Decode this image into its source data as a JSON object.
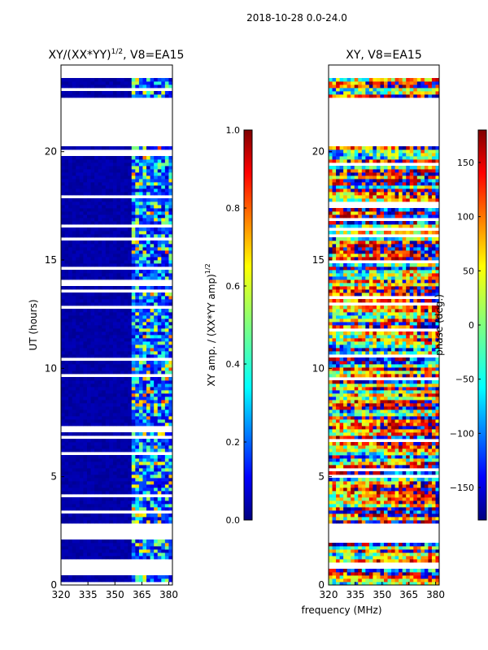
{
  "figure": {
    "suptitle": "2018-10-28 0.0-24.0",
    "xlabel": "frequency (MHz)"
  },
  "colors": {
    "jet": [
      "#00007f",
      "#0000ff",
      "#007fff",
      "#00ffff",
      "#7fff7f",
      "#ffff00",
      "#ff7f00",
      "#ff0000",
      "#7f0000"
    ],
    "axes": "#000000",
    "background": "#ffffff"
  },
  "chart_data": [
    {
      "type": "heatmap",
      "title_base": "XY/(XX*YY)",
      "title_sup": "1/2",
      "title_suffix": ", V8=EA15",
      "xlabel": "",
      "ylabel": "UT (hours)",
      "xlim": [
        320,
        382
      ],
      "ylim": [
        0,
        24
      ],
      "xticks": [
        "320",
        "335",
        "350",
        "365",
        "380"
      ],
      "xtick_values": [
        320,
        335,
        350,
        365,
        380
      ],
      "yticks": [
        "0",
        "5",
        "10",
        "15",
        "20"
      ],
      "ytick_values": [
        0,
        5,
        10,
        15,
        20
      ],
      "data_gaps_hours": [
        [
          0.5,
          1.1
        ],
        [
          2.1,
          2.8
        ],
        [
          20.2,
          22.5
        ],
        [
          23.4,
          24
        ]
      ],
      "bright_band_mhz": [
        360,
        382
      ],
      "colorbar": {
        "label_base": "XY amp. / (XX*YY amp)",
        "label_sup": "1/2",
        "range": [
          0.0,
          1.0
        ],
        "ticks": [
          "0.0",
          "0.2",
          "0.4",
          "0.6",
          "0.8",
          "1.0"
        ],
        "tick_values": [
          0.0,
          0.2,
          0.4,
          0.6,
          0.8,
          1.0
        ]
      }
    },
    {
      "type": "heatmap",
      "title": "XY, V8=EA15",
      "xlabel": "",
      "ylabel": "",
      "xlim": [
        320,
        382
      ],
      "ylim": [
        0,
        24
      ],
      "xticks": [
        "320",
        "335",
        "350",
        "365",
        "380"
      ],
      "xtick_values": [
        320,
        335,
        350,
        365,
        380
      ],
      "yticks": [
        "0",
        "5",
        "10",
        "15",
        "20"
      ],
      "ytick_values": [
        0,
        5,
        10,
        15,
        20
      ],
      "data_gaps_hours": [
        [
          2.1,
          2.8
        ],
        [
          20.2,
          22.5
        ],
        [
          23.4,
          24
        ]
      ],
      "colorbar": {
        "label": "phase (deg.)",
        "range": [
          -180,
          180
        ],
        "ticks": [
          "−150",
          "−100",
          "−50",
          "0",
          "50",
          "100",
          "150"
        ],
        "tick_values": [
          -150,
          -100,
          -50,
          0,
          50,
          100,
          150
        ]
      }
    }
  ]
}
